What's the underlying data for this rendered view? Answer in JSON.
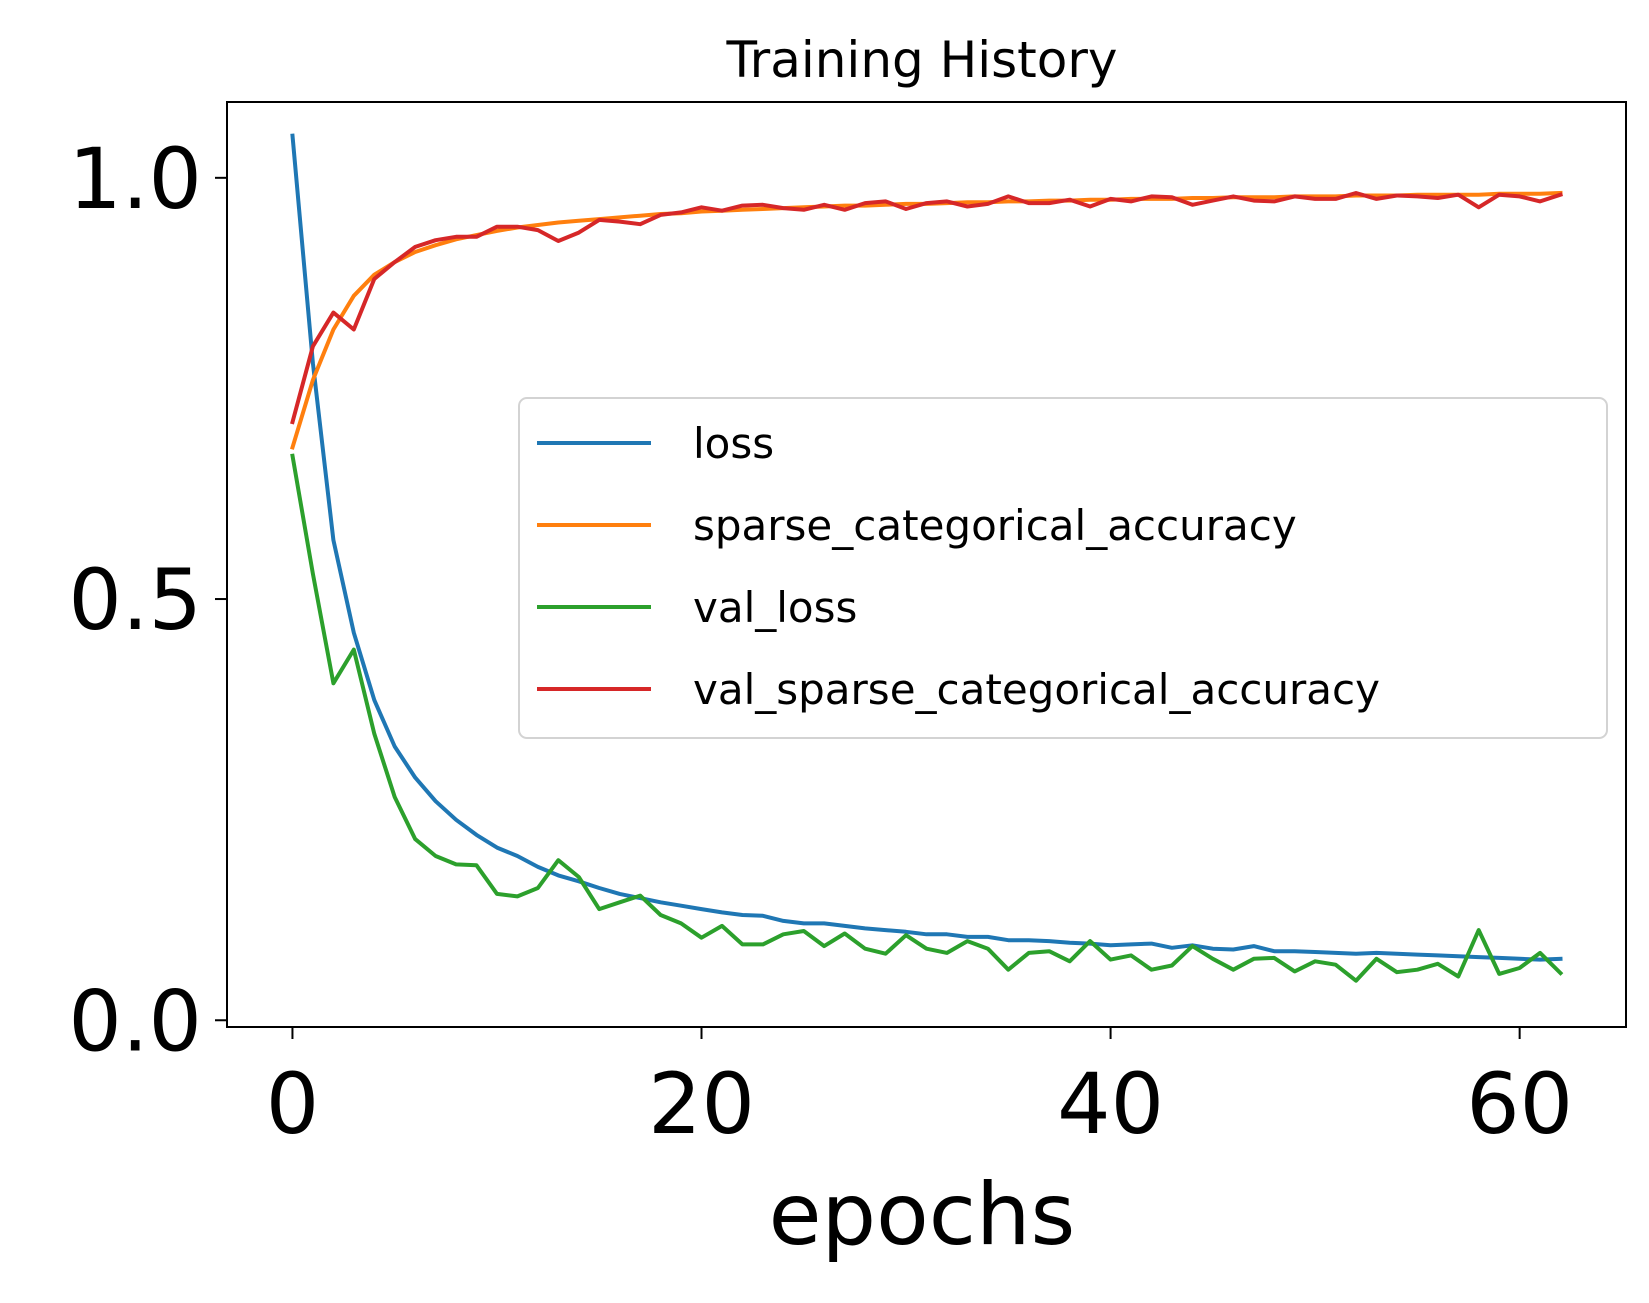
{
  "chart_data": {
    "type": "line",
    "title": "Training History",
    "xlabel": "epochs",
    "ylabel": "",
    "xlim": [
      -3.2,
      65.2
    ],
    "ylim": [
      -0.008,
      1.09
    ],
    "xticks": [
      0,
      20,
      40,
      60
    ],
    "xtick_labels": [
      "0",
      "20",
      "40",
      "60"
    ],
    "yticks": [
      0.0,
      0.5,
      1.0
    ],
    "ytick_labels": [
      "0.0",
      "0.5",
      "1.0"
    ],
    "grid": false,
    "legend_position": "center-right",
    "x": [
      0,
      1,
      2,
      3,
      4,
      5,
      6,
      7,
      8,
      9,
      10,
      11,
      12,
      13,
      14,
      15,
      16,
      17,
      18,
      19,
      20,
      21,
      22,
      23,
      24,
      25,
      26,
      27,
      28,
      29,
      30,
      31,
      32,
      33,
      34,
      35,
      36,
      37,
      38,
      39,
      40,
      41,
      42,
      43,
      44,
      45,
      46,
      47,
      48,
      49,
      50,
      51,
      52,
      53,
      54,
      55,
      56,
      57,
      58,
      59,
      60,
      61,
      62
    ],
    "series": [
      {
        "name": "loss",
        "color": "#1f77b4",
        "values": [
          1.05,
          0.78,
          0.57,
          0.46,
          0.38,
          0.325,
          0.288,
          0.26,
          0.238,
          0.22,
          0.205,
          0.195,
          0.182,
          0.172,
          0.165,
          0.157,
          0.15,
          0.145,
          0.14,
          0.136,
          0.132,
          0.128,
          0.125,
          0.124,
          0.118,
          0.115,
          0.115,
          0.112,
          0.109,
          0.107,
          0.105,
          0.102,
          0.102,
          0.099,
          0.099,
          0.095,
          0.095,
          0.094,
          0.092,
          0.091,
          0.089,
          0.09,
          0.091,
          0.086,
          0.089,
          0.085,
          0.084,
          0.088,
          0.082,
          0.082,
          0.081,
          0.08,
          0.079,
          0.08,
          0.079,
          0.078,
          0.077,
          0.076,
          0.075,
          0.074,
          0.073,
          0.072,
          0.073
        ]
      },
      {
        "name": "sparse_categorical_accuracy",
        "color": "#ff7f0e",
        "values": [
          0.68,
          0.76,
          0.82,
          0.86,
          0.885,
          0.9,
          0.912,
          0.92,
          0.927,
          0.932,
          0.937,
          0.941,
          0.944,
          0.947,
          0.949,
          0.951,
          0.953,
          0.955,
          0.957,
          0.958,
          0.96,
          0.961,
          0.962,
          0.963,
          0.964,
          0.965,
          0.966,
          0.967,
          0.967,
          0.968,
          0.969,
          0.969,
          0.97,
          0.971,
          0.971,
          0.972,
          0.972,
          0.973,
          0.973,
          0.974,
          0.974,
          0.975,
          0.975,
          0.975,
          0.976,
          0.976,
          0.977,
          0.977,
          0.977,
          0.978,
          0.978,
          0.978,
          0.979,
          0.979,
          0.979,
          0.98,
          0.98,
          0.98,
          0.98,
          0.981,
          0.981,
          0.981,
          0.982
        ]
      },
      {
        "name": "val_loss",
        "color": "#2ca02c",
        "values": [
          0.67,
          0.53,
          0.4,
          0.44,
          0.34,
          0.265,
          0.215,
          0.195,
          0.185,
          0.184,
          0.15,
          0.147,
          0.157,
          0.19,
          0.17,
          0.132,
          0.14,
          0.148,
          0.125,
          0.115,
          0.098,
          0.112,
          0.09,
          0.09,
          0.102,
          0.106,
          0.088,
          0.103,
          0.085,
          0.079,
          0.101,
          0.085,
          0.08,
          0.094,
          0.085,
          0.06,
          0.08,
          0.082,
          0.07,
          0.094,
          0.072,
          0.077,
          0.06,
          0.065,
          0.088,
          0.073,
          0.06,
          0.073,
          0.074,
          0.058,
          0.07,
          0.066,
          0.047,
          0.073,
          0.057,
          0.06,
          0.067,
          0.052,
          0.107,
          0.055,
          0.062,
          0.08,
          0.056
        ]
      },
      {
        "name": "val_sparse_categorical_accuracy",
        "color": "#d62728",
        "values": [
          0.71,
          0.8,
          0.84,
          0.82,
          0.88,
          0.9,
          0.918,
          0.926,
          0.93,
          0.93,
          0.942,
          0.942,
          0.938,
          0.925,
          0.935,
          0.95,
          0.948,
          0.945,
          0.956,
          0.959,
          0.965,
          0.961,
          0.967,
          0.968,
          0.964,
          0.962,
          0.968,
          0.962,
          0.97,
          0.972,
          0.963,
          0.97,
          0.972,
          0.966,
          0.969,
          0.978,
          0.97,
          0.97,
          0.974,
          0.966,
          0.975,
          0.972,
          0.978,
          0.977,
          0.968,
          0.973,
          0.978,
          0.973,
          0.972,
          0.978,
          0.975,
          0.975,
          0.982,
          0.975,
          0.979,
          0.978,
          0.976,
          0.98,
          0.965,
          0.98,
          0.978,
          0.972,
          0.98
        ]
      }
    ]
  }
}
